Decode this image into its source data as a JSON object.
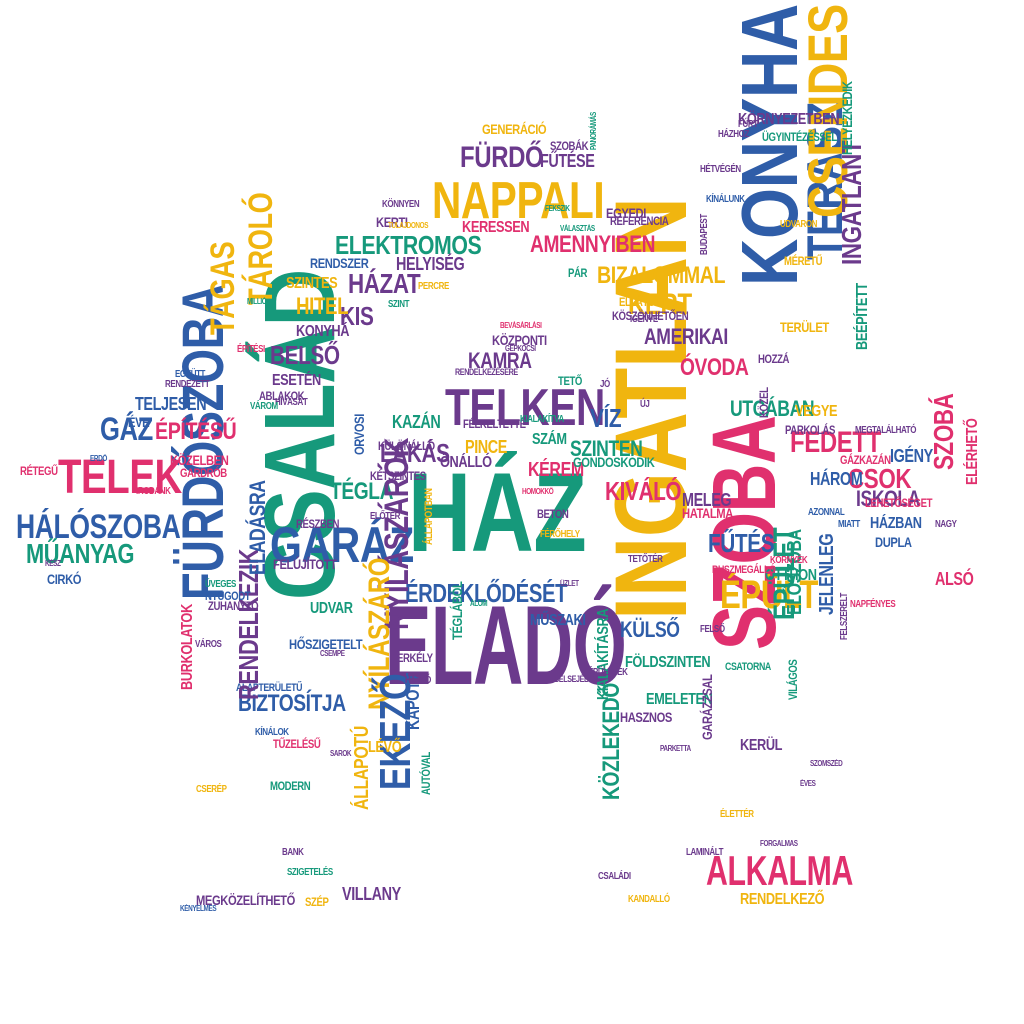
{
  "colors": {
    "purple": "#6b3a8c",
    "teal": "#16997b",
    "blue": "#2f5da8",
    "pink": "#e0306e",
    "yellow": "#f0b50f",
    "background": "#ffffff"
  },
  "shape": "house",
  "words": [
    {
      "text": "HÁZ",
      "color": "teal"
    },
    {
      "text": "ELADÓ",
      "color": "purple"
    },
    {
      "text": "INGATLAN",
      "color": "yellow"
    },
    {
      "text": "CSALÁD",
      "color": "teal"
    },
    {
      "text": "SZOBA",
      "color": "pink"
    },
    {
      "text": "FÜRDŐSZOBA",
      "color": "blue"
    },
    {
      "text": "KONYHA",
      "color": "blue"
    },
    {
      "text": "TERASZ",
      "color": "blue"
    },
    {
      "text": "CSENDES",
      "color": "yellow"
    },
    {
      "text": "NAPPALI",
      "color": "yellow"
    },
    {
      "text": "TELKEN",
      "color": "purple"
    },
    {
      "text": "GARÁZ",
      "color": "blue"
    },
    {
      "text": "TELEK",
      "color": "pink"
    },
    {
      "text": "HÁLÓSZOBA",
      "color": "blue"
    },
    {
      "text": "MŰANYAG",
      "color": "teal"
    },
    {
      "text": "ALKALMA",
      "color": "pink"
    },
    {
      "text": "ÉPÜLT",
      "color": "yellow"
    },
    {
      "text": "ÉPÜLET",
      "color": "teal"
    },
    {
      "text": "ELEKTROMOS",
      "color": "teal"
    },
    {
      "text": "AMENNYIBEN",
      "color": "pink"
    },
    {
      "text": "BIZALOMMAL",
      "color": "yellow"
    },
    {
      "text": "KERT",
      "color": "yellow"
    },
    {
      "text": "FÜRDŐ",
      "color": "purple"
    },
    {
      "text": "FŰTÉSE",
      "color": "purple"
    },
    {
      "text": "GENERÁCIÓ",
      "color": "yellow"
    },
    {
      "text": "SZOBÁK",
      "color": "purple"
    },
    {
      "text": "HÁZAT",
      "color": "purple"
    },
    {
      "text": "KIS",
      "color": "purple"
    },
    {
      "text": "HITEL",
      "color": "yellow"
    },
    {
      "text": "SZINTES",
      "color": "yellow"
    },
    {
      "text": "HELYISÉG",
      "color": "purple"
    },
    {
      "text": "RENDSZER",
      "color": "blue"
    },
    {
      "text": "KONYHÁ",
      "color": "purple"
    },
    {
      "text": "TÁROLÓ",
      "color": "yellow"
    },
    {
      "text": "TÁGAS",
      "color": "yellow"
    },
    {
      "text": "BELSŐ",
      "color": "purple"
    },
    {
      "text": "ESETÉN",
      "color": "purple"
    },
    {
      "text": "ÉPÍTÉSŰ",
      "color": "pink"
    },
    {
      "text": "TELJESEN",
      "color": "blue"
    },
    {
      "text": "GÁZ",
      "color": "blue"
    },
    {
      "text": "KÖZELBEN",
      "color": "pink"
    },
    {
      "text": "KAMRA",
      "color": "purple"
    },
    {
      "text": "KÖZPONTI",
      "color": "purple"
    },
    {
      "text": "VÍZ",
      "color": "blue"
    },
    {
      "text": "SZINTEN",
      "color": "teal"
    },
    {
      "text": "SZÁM",
      "color": "teal"
    },
    {
      "text": "KÉREM",
      "color": "pink"
    },
    {
      "text": "PINCE",
      "color": "yellow"
    },
    {
      "text": "KAZÁN",
      "color": "teal"
    },
    {
      "text": "LAKÁS",
      "color": "purple"
    },
    {
      "text": "TÉGLA",
      "color": "teal"
    },
    {
      "text": "ÖNÁLLÓ",
      "color": "purple"
    },
    {
      "text": "KIVÁLÓ",
      "color": "pink"
    },
    {
      "text": "MELEG",
      "color": "purple"
    },
    {
      "text": "HATALMA",
      "color": "pink"
    },
    {
      "text": "FŰTÉS",
      "color": "blue"
    },
    {
      "text": "ÉRDEKLŐDÉSÉT",
      "color": "blue"
    },
    {
      "text": "MŰSZAKI",
      "color": "blue"
    },
    {
      "text": "NYÍLÁSZÁRÓK",
      "color": "purple"
    },
    {
      "text": "NYÍLÁSZÁRÓ",
      "color": "yellow"
    },
    {
      "text": "KÜLSŐ",
      "color": "blue"
    },
    {
      "text": "FÖLDSZINTEN",
      "color": "teal"
    },
    {
      "text": "UDVAR",
      "color": "teal"
    },
    {
      "text": "BIZTOSÍTJA",
      "color": "blue"
    },
    {
      "text": "ALAPTERÜLETŰ",
      "color": "blue"
    },
    {
      "text": "HŐSZIGETELT",
      "color": "blue"
    },
    {
      "text": "RENDELKEZIK",
      "color": "purple"
    },
    {
      "text": "ELADÁSRA",
      "color": "blue"
    },
    {
      "text": "BURKOLATOK",
      "color": "pink"
    },
    {
      "text": "FELÚJÍTOTT",
      "color": "purple"
    },
    {
      "text": "KAPOTT",
      "color": "blue"
    },
    {
      "text": "EKEZŐ",
      "color": "blue"
    },
    {
      "text": "KÖZLEKEDŐ",
      "color": "teal"
    },
    {
      "text": "KIALAKÍTÁSRA",
      "color": "teal"
    },
    {
      "text": "EMELETEN",
      "color": "teal"
    },
    {
      "text": "HASZNOS",
      "color": "purple"
    },
    {
      "text": "RENDELKEZŐ",
      "color": "yellow"
    },
    {
      "text": "MEGKÖZELÍTHETŐ",
      "color": "purple"
    },
    {
      "text": "VILLANY",
      "color": "purple"
    },
    {
      "text": "ÁLLAPOTÚ",
      "color": "yellow"
    },
    {
      "text": "ÁLLAPOTBAN",
      "color": "yellow"
    },
    {
      "text": "EGYEDI",
      "color": "purple"
    },
    {
      "text": "REFERENCIA",
      "color": "purple"
    },
    {
      "text": "KERESSEN",
      "color": "pink"
    },
    {
      "text": "ÓVODA",
      "color": "pink"
    },
    {
      "text": "AMERIKAI",
      "color": "purple"
    },
    {
      "text": "UTCÁBAN",
      "color": "teal"
    },
    {
      "text": "FEDETT",
      "color": "pink"
    },
    {
      "text": "CSOK",
      "color": "pink"
    },
    {
      "text": "ISKOLA",
      "color": "purple"
    },
    {
      "text": "IGÉNY",
      "color": "blue"
    },
    {
      "text": "VEGYE",
      "color": "yellow"
    },
    {
      "text": "HÁZBAN",
      "color": "blue"
    },
    {
      "text": "DUPLA",
      "color": "blue"
    },
    {
      "text": "SZOBÁ",
      "color": "pink"
    },
    {
      "text": "ALSÓ",
      "color": "pink"
    },
    {
      "text": "ELÉRHETŐ",
      "color": "pink"
    },
    {
      "text": "HÁROM",
      "color": "blue"
    },
    {
      "text": "BEÉPÍTETT",
      "color": "teal"
    },
    {
      "text": "INGATLANT",
      "color": "purple"
    },
    {
      "text": "HELYEZKEDIK",
      "color": "teal"
    },
    {
      "text": "KÖRNYEZETBEN",
      "color": "purple"
    },
    {
      "text": "OTTHON",
      "color": "teal"
    },
    {
      "text": "JELENLEG",
      "color": "blue"
    },
    {
      "text": "ELŐSZOBA",
      "color": "teal"
    },
    {
      "text": "BUSZMEGÁLLÓ",
      "color": "pink"
    },
    {
      "text": "ÉVE",
      "color": "blue"
    },
    {
      "text": "CSATORNA",
      "color": "teal"
    },
    {
      "text": "KERÜL",
      "color": "purple"
    },
    {
      "text": "VILÁGOS",
      "color": "teal"
    },
    {
      "text": "PARKOLÁS",
      "color": "purple"
    },
    {
      "text": "ÜGYINTÉZÉSSEL",
      "color": "teal"
    },
    {
      "text": "KÍNÁLUNK",
      "color": "blue"
    },
    {
      "text": "HÉTVÉGÉN",
      "color": "purple"
    },
    {
      "text": "KÖSZÖNHETŐEN",
      "color": "purple"
    },
    {
      "text": "ELLÁTOTT",
      "color": "yellow"
    },
    {
      "text": "IGÉNYE",
      "color": "purple"
    },
    {
      "text": "KERTI",
      "color": "purple"
    },
    {
      "text": "KÖNNYEN",
      "color": "purple"
    },
    {
      "text": "TULAJDONOS",
      "color": "yellow"
    },
    {
      "text": "PERCRE",
      "color": "yellow"
    },
    {
      "text": "SZINT",
      "color": "teal"
    },
    {
      "text": "TÉGLÁBÓL",
      "color": "teal"
    },
    {
      "text": "HOZZÁ",
      "color": "purple"
    },
    {
      "text": "TERÜLET",
      "color": "yellow"
    },
    {
      "text": "ZUHANYZÓ",
      "color": "purple"
    },
    {
      "text": "NYUGODT",
      "color": "blue"
    },
    {
      "text": "ÜVEGES",
      "color": "teal"
    },
    {
      "text": "RÉSZBEN",
      "color": "purple"
    },
    {
      "text": "MODERN",
      "color": "teal"
    },
    {
      "text": "BANK",
      "color": "purple"
    },
    {
      "text": "SZÉP",
      "color": "yellow"
    },
    {
      "text": "SZIGETELÉS",
      "color": "teal"
    },
    {
      "text": "TŰZELÉSŰ",
      "color": "pink"
    },
    {
      "text": "LÉVŐ",
      "color": "yellow"
    },
    {
      "text": "AUTÓVAL",
      "color": "teal"
    },
    {
      "text": "CSERÉP",
      "color": "yellow"
    },
    {
      "text": "FÉRŐHELY",
      "color": "yellow"
    },
    {
      "text": "ORVOSI",
      "color": "blue"
    },
    {
      "text": "KÜLÖNÁLLÓ",
      "color": "purple"
    },
    {
      "text": "KÉTSZINTES",
      "color": "purple"
    },
    {
      "text": "GONDOSKODIK",
      "color": "teal"
    },
    {
      "text": "FÉLKELTETTE",
      "color": "purple"
    },
    {
      "text": "KIALAKÍTVA",
      "color": "teal"
    },
    {
      "text": "BETON",
      "color": "purple"
    },
    {
      "text": "CIRKÓ",
      "color": "blue"
    },
    {
      "text": "GARDRÓB",
      "color": "pink"
    },
    {
      "text": "IRODÁNK",
      "color": "pink"
    },
    {
      "text": "ABLAKOK",
      "color": "purple"
    },
    {
      "text": "HÍVÁSÁT",
      "color": "purple"
    },
    {
      "text": "VÁROM",
      "color": "teal"
    },
    {
      "text": "MILLIÓ",
      "color": "teal"
    },
    {
      "text": "EGYÜTT",
      "color": "blue"
    },
    {
      "text": "RENDEZETT",
      "color": "purple"
    },
    {
      "text": "ÉPÍTÉSI",
      "color": "pink"
    },
    {
      "text": "RÉTEGŰ",
      "color": "pink"
    },
    {
      "text": "HÁTSÓ",
      "color": "purple"
    },
    {
      "text": "ERKÉLY",
      "color": "purple"
    },
    {
      "text": "KANDALLÓ",
      "color": "yellow"
    },
    {
      "text": "CSALÁDI",
      "color": "purple"
    },
    {
      "text": "LAMINÁLT",
      "color": "purple"
    },
    {
      "text": "GARÁZZSAL",
      "color": "purple"
    },
    {
      "text": "ÉLETTÉR",
      "color": "yellow"
    },
    {
      "text": "GÁZKAZÁN",
      "color": "pink"
    },
    {
      "text": "LEHETŐSÉGET",
      "color": "pink"
    },
    {
      "text": "MEGTALÁLHATÓ",
      "color": "purple"
    },
    {
      "text": "KÖZEL",
      "color": "purple"
    },
    {
      "text": "UDVARON",
      "color": "yellow"
    },
    {
      "text": "HÁZHOZ",
      "color": "purple"
    },
    {
      "text": "FÚRT",
      "color": "purple"
    },
    {
      "text": "MIATT",
      "color": "blue"
    },
    {
      "text": "AZONNAL",
      "color": "blue"
    },
    {
      "text": "KÍNÁLOK",
      "color": "blue"
    },
    {
      "text": "ÉPÜLETEK",
      "color": "purple"
    },
    {
      "text": "MÉRETŰ",
      "color": "yellow"
    },
    {
      "text": "PÁR",
      "color": "teal"
    },
    {
      "text": "BEVÁSÁRLÁSI",
      "color": "pink"
    },
    {
      "text": "TETŐ",
      "color": "teal"
    },
    {
      "text": "TETŐTÉR",
      "color": "purple"
    },
    {
      "text": "BELSEJÉBEN",
      "color": "purple"
    },
    {
      "text": "VÁLASZTÁS",
      "color": "teal"
    },
    {
      "text": "FEKSZIK",
      "color": "teal"
    },
    {
      "text": "PANORÁMÁS",
      "color": "teal"
    },
    {
      "text": "BUDAPEST",
      "color": "purple"
    },
    {
      "text": "NAPFÉNYES",
      "color": "pink"
    },
    {
      "text": "FELSZERELT",
      "color": "purple"
    },
    {
      "text": "GÉPKOCSI",
      "color": "purple"
    },
    {
      "text": "RENDELKEZÉSÉRE",
      "color": "purple"
    },
    {
      "text": "ELŐTÉR",
      "color": "purple"
    },
    {
      "text": "HOMOKKŐ",
      "color": "pink"
    },
    {
      "text": "FELSŐ",
      "color": "purple"
    },
    {
      "text": "VÁROS",
      "color": "purple"
    },
    {
      "text": "KÖRNYÉK",
      "color": "pink"
    },
    {
      "text": "SZOMSZÉD",
      "color": "purple"
    },
    {
      "text": "CSEMPE",
      "color": "purple"
    },
    {
      "text": "ÁLOM",
      "color": "teal"
    },
    {
      "text": "ERDŐ",
      "color": "blue"
    },
    {
      "text": "KÉNYELMES",
      "color": "blue"
    },
    {
      "text": "FORGALMAS",
      "color": "purple"
    },
    {
      "text": "ÉVES",
      "color": "purple"
    },
    {
      "text": "PARKETTA",
      "color": "purple"
    },
    {
      "text": "SAROK",
      "color": "purple"
    },
    {
      "text": "ÜZLET",
      "color": "purple"
    },
    {
      "text": "KÉSZ",
      "color": "purple"
    },
    {
      "text": "NAGY",
      "color": "purple"
    },
    {
      "text": "JÓ",
      "color": "purple"
    },
    {
      "text": "ÚJ",
      "color": "purple"
    }
  ]
}
